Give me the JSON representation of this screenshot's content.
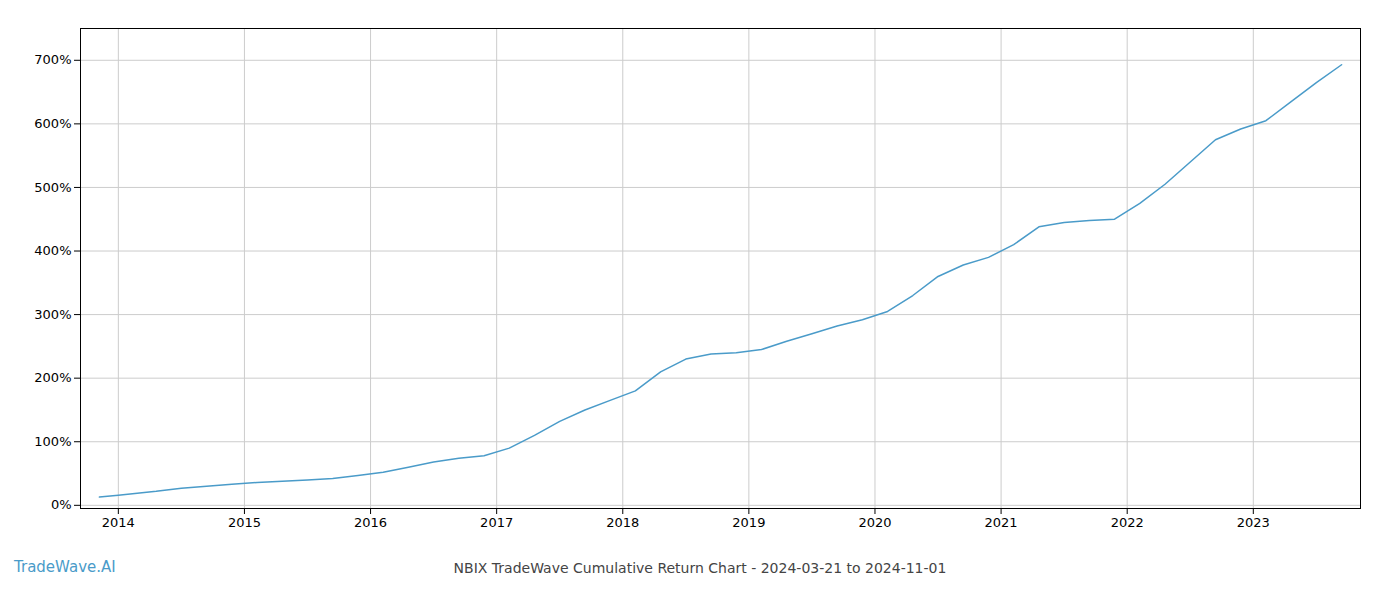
{
  "chart_data": {
    "type": "line",
    "title": "NBIX TradeWave Cumulative Return Chart - 2024-03-21 to 2024-11-01",
    "annotations": [
      {
        "text": "TradeWave.AI"
      }
    ],
    "color": "#4a9bc9",
    "x": [
      2013.85,
      2014.0,
      2014.15,
      2014.3,
      2014.5,
      2014.7,
      2014.9,
      2015.1,
      2015.3,
      2015.5,
      2015.7,
      2015.9,
      2016.1,
      2016.3,
      2016.5,
      2016.7,
      2016.9,
      2017.1,
      2017.3,
      2017.5,
      2017.7,
      2017.9,
      2018.1,
      2018.3,
      2018.5,
      2018.7,
      2018.9,
      2019.1,
      2019.3,
      2019.5,
      2019.7,
      2019.9,
      2020.1,
      2020.3,
      2020.5,
      2020.7,
      2020.9,
      2021.1,
      2021.3,
      2021.5,
      2021.7,
      2021.9,
      2022.1,
      2022.3,
      2022.5,
      2022.7,
      2022.9,
      2023.1,
      2023.3,
      2023.5,
      2023.7
    ],
    "values": [
      0.13,
      0.16,
      0.19,
      0.22,
      0.27,
      0.3,
      0.33,
      0.36,
      0.38,
      0.4,
      0.42,
      0.47,
      0.52,
      0.6,
      0.68,
      0.74,
      0.78,
      0.9,
      1.1,
      1.32,
      1.5,
      1.65,
      1.8,
      2.1,
      2.3,
      2.38,
      2.4,
      2.45,
      2.58,
      2.7,
      2.82,
      2.92,
      3.05,
      3.3,
      3.6,
      3.78,
      3.9,
      4.1,
      4.38,
      4.45,
      4.48,
      4.5,
      4.75,
      5.05,
      5.4,
      5.75,
      5.92,
      6.05,
      6.35,
      6.65,
      6.93
    ],
    "xlim": [
      2013.7,
      2023.85
    ],
    "ylim": [
      -0.05,
      7.5
    ],
    "xticks": [
      2014,
      2015,
      2016,
      2017,
      2018,
      2019,
      2020,
      2021,
      2022,
      2023
    ],
    "yticks": [
      {
        "value": 0.0,
        "label": "0%"
      },
      {
        "value": 1.0,
        "label": "100%"
      },
      {
        "value": 2.0,
        "label": "200%"
      },
      {
        "value": 3.0,
        "label": "300%"
      },
      {
        "value": 4.0,
        "label": "400%"
      },
      {
        "value": 5.0,
        "label": "500%"
      },
      {
        "value": 6.0,
        "label": "600%"
      },
      {
        "value": 7.0,
        "label": "700%"
      }
    ],
    "grid": true
  }
}
